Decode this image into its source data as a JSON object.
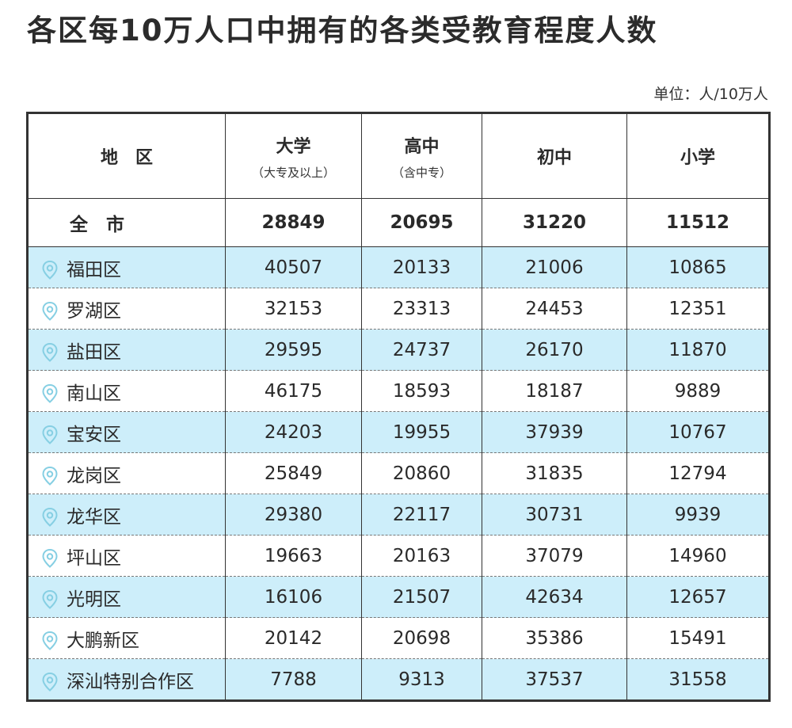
{
  "header": {
    "title": "各区每10万人口中拥有的各类受教育程度人数",
    "unit": "单位：人/10万人"
  },
  "table": {
    "columns": [
      {
        "name": "地　区"
      },
      {
        "name": "大学",
        "sub": "（大专及以上）"
      },
      {
        "name": "高中",
        "sub": "（含中专）"
      },
      {
        "name": "初中"
      },
      {
        "name": "小学"
      }
    ],
    "total": [
      "全　市",
      28849,
      20695,
      31220,
      11512
    ],
    "rows": [
      [
        "福田区",
        40507,
        20133,
        21006,
        10865
      ],
      [
        "罗湖区",
        32153,
        23313,
        24453,
        12351
      ],
      [
        "盐田区",
        29595,
        24737,
        26170,
        11870
      ],
      [
        "南山区",
        46175,
        18593,
        18187,
        9889
      ],
      [
        "宝安区",
        24203,
        19955,
        37939,
        10767
      ],
      [
        "龙岗区",
        25849,
        20860,
        31835,
        12794
      ],
      [
        "龙华区",
        29380,
        22117,
        30731,
        9939
      ],
      [
        "坪山区",
        19663,
        20163,
        37079,
        14960
      ],
      [
        "光明区",
        16106,
        21507,
        42634,
        12657
      ],
      [
        "大鹏新区",
        20142,
        20698,
        35386,
        15491
      ],
      [
        "深汕特别合作区",
        7788,
        9313,
        37537,
        31558
      ]
    ]
  }
}
